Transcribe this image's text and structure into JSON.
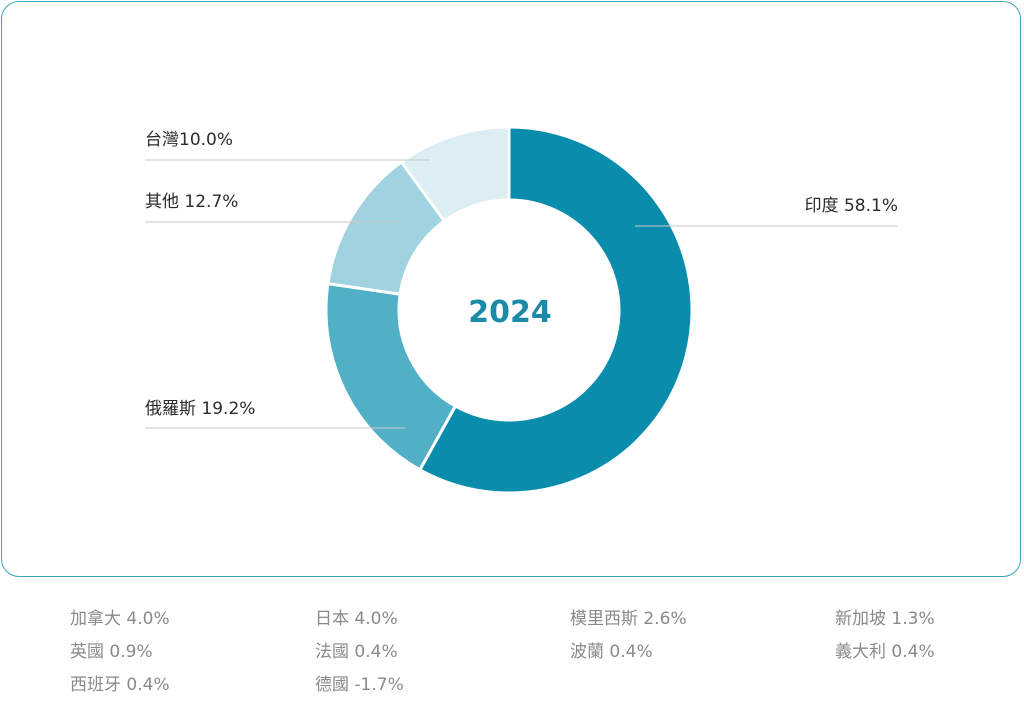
{
  "chart_data": {
    "type": "pie",
    "title": "2024",
    "categories": [
      "印度",
      "俄羅斯",
      "其他",
      "台灣"
    ],
    "values": [
      58.1,
      19.2,
      12.7,
      10.0
    ],
    "unit": "%",
    "labels": [
      "印度 58.1%",
      "俄羅斯 19.2%",
      "其他 12.7%",
      "台灣10.0%"
    ],
    "colors": [
      "#0a8cad",
      "#52b0c6",
      "#a0d2e0",
      "#dcedf3"
    ]
  },
  "legend": {
    "columns": [
      [
        "加拿大 4.0%",
        "英國 0.9%",
        "西班牙 0.4%"
      ],
      [
        "日本 4.0%",
        "法國 0.4%",
        "德國 -1.7%"
      ],
      [
        "模里西斯 2.6%",
        "波蘭 0.4%"
      ],
      [
        "新加坡 1.3%",
        "義大利 0.4%"
      ]
    ]
  }
}
